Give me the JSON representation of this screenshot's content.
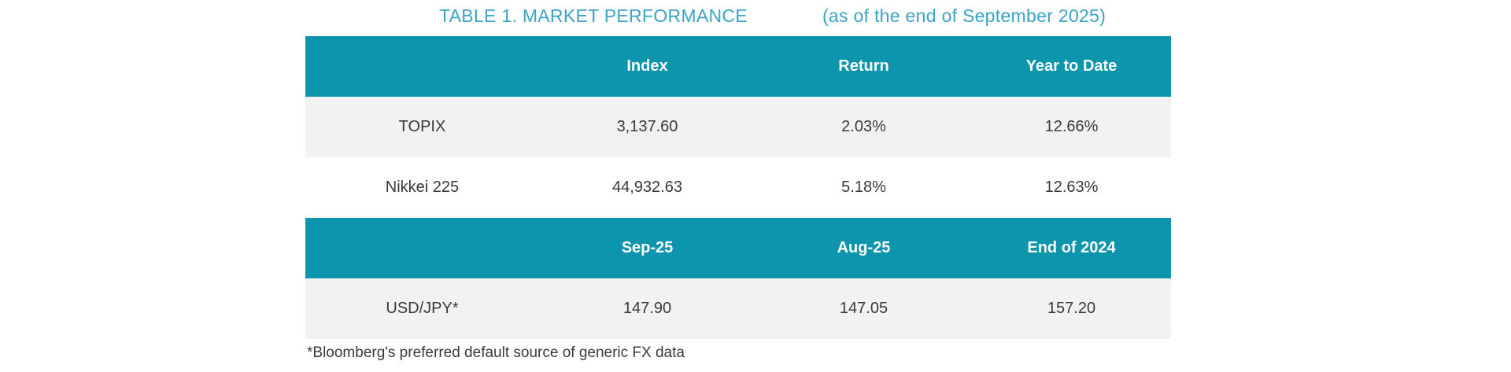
{
  "title": {
    "main": "TABLE 1. MARKET PERFORMANCE",
    "suffix": "(as of the end of September 2025)"
  },
  "colors": {
    "header_bg": "#0d95ae",
    "title_text": "#3ba4c6",
    "alt_row_bg": "#f2f2f2",
    "body_text": "#3a3a3a",
    "header_text": "#ffffff"
  },
  "index_table": {
    "headers": {
      "col2": "Index",
      "col3": "Return",
      "col4": "Year to Date"
    },
    "rows": [
      {
        "label": "TOPIX",
        "values": [
          "3,137.60",
          "2.03%",
          "12.66%"
        ]
      },
      {
        "label": "Nikkei 225",
        "values": [
          "44,932.63",
          "5.18%",
          "12.63%"
        ]
      }
    ]
  },
  "fx_table": {
    "headers": {
      "col2": "Sep-25",
      "col3": "Aug-25",
      "col4": "End of 2024"
    },
    "rows": [
      {
        "label": "USD/JPY*",
        "values": [
          "147.90",
          "147.05",
          "157.20"
        ]
      }
    ]
  },
  "footnote": "*Bloomberg's preferred default source of generic FX data",
  "chart_data": [
    {
      "type": "table",
      "title": "TABLE 1. MARKET PERFORMANCE (as of the end of September 2025)",
      "columns": [
        "",
        "Index",
        "Return",
        "Year to Date"
      ],
      "rows": [
        [
          "TOPIX",
          "3,137.60",
          "2.03%",
          "12.66%"
        ],
        [
          "Nikkei 225",
          "44,932.63",
          "5.18%",
          "12.63%"
        ]
      ]
    },
    {
      "type": "table",
      "columns": [
        "",
        "Sep-25",
        "Aug-25",
        "End of 2024"
      ],
      "rows": [
        [
          "USD/JPY*",
          "147.90",
          "147.05",
          "157.20"
        ]
      ],
      "footnote": "*Bloomberg's preferred default source of generic FX data"
    }
  ]
}
